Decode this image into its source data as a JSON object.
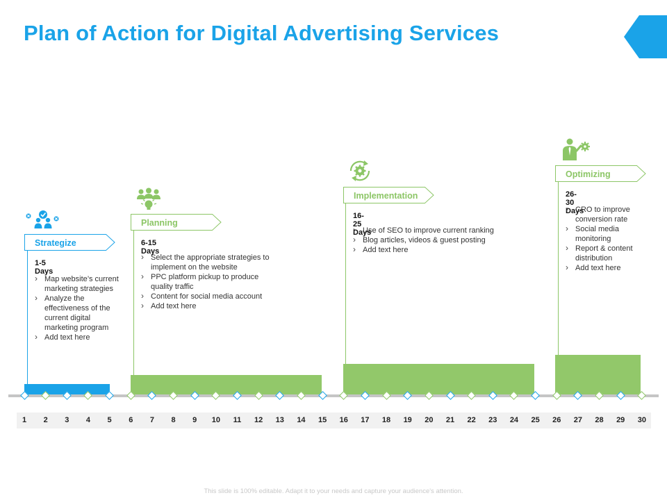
{
  "slide": {
    "title": "Plan of Action for Digital Advertising Services",
    "footer": "This slide is 100% editable. Adapt it to your needs and capture your audience's attention."
  },
  "colors": {
    "accent_blue": "#1aa3e8",
    "accent_green": "#92c86a",
    "axis": "#c5c5c5"
  },
  "stages": [
    {
      "label": "Strategize",
      "days": "1-5 Days",
      "icon": "team-check-icon",
      "color": "blue",
      "start_day": 1,
      "end_day": 5,
      "bullets": [
        "Map website’s current marketing strategies",
        "Analyze the effectiveness of the current digital marketing program",
        "Add text here"
      ]
    },
    {
      "label": "Planning",
      "days": "6-15 Days",
      "icon": "group-idea-icon",
      "color": "green",
      "start_day": 6,
      "end_day": 15,
      "bullets": [
        "Select the appropriate strategies to implement on the website",
        "PPC platform pickup to produce quality traffic",
        "Content for social media account",
        "Add text here"
      ]
    },
    {
      "label": "Implementation",
      "days": "16-25 Days",
      "icon": "gear-cycle-icon",
      "color": "green",
      "start_day": 16,
      "end_day": 25,
      "bullets": [
        "Use of SEO to improve current ranking",
        "Blog articles, videos & guest posting",
        "Add text here"
      ]
    },
    {
      "label": "Optimizing",
      "days": "26-30 Days",
      "icon": "person-gear-icon",
      "color": "green",
      "start_day": 26,
      "end_day": 30,
      "bullets": [
        "CRO to improve conversion rate",
        "Social media monitoring",
        "Report & content distribution",
        "Add text here"
      ]
    }
  ],
  "timeline": {
    "days": [
      "1",
      "2",
      "3",
      "4",
      "5",
      "6",
      "7",
      "8",
      "9",
      "10",
      "11",
      "12",
      "13",
      "14",
      "15",
      "16",
      "17",
      "18",
      "19",
      "20",
      "21",
      "22",
      "23",
      "24",
      "25",
      "26",
      "27",
      "28",
      "29",
      "30"
    ]
  }
}
